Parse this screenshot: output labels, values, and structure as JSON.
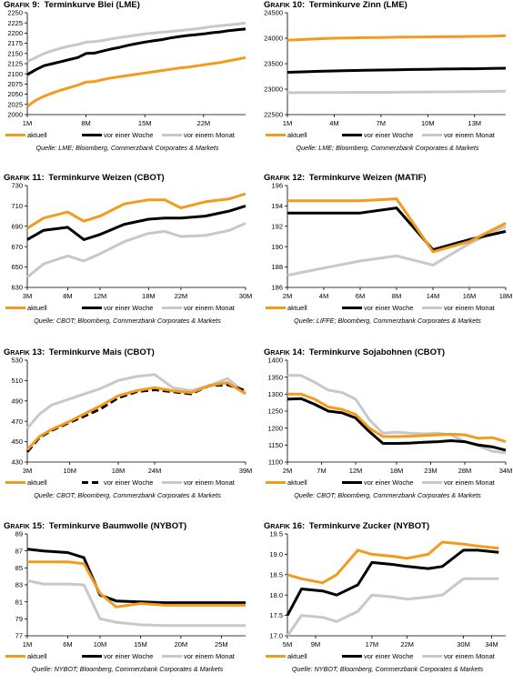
{
  "prefix": "Grafik",
  "legend_colors": {
    "aktuell": "#f39b1c",
    "woche": "#000000",
    "monat": "#c8c8c8"
  },
  "charts": [
    {
      "number": "9:",
      "title_text": "Terminkurve Blei (LME)",
      "source": "Quelle: LME; Bloomberg, Commerzbank Corporates & Markets",
      "legend": [
        "aktuell",
        "vor einer Woche",
        "vor einem Monat"
      ],
      "chart_data": {
        "type": "line",
        "ylim": [
          2000,
          2250
        ],
        "yticks": [
          "2000",
          "2025",
          "2050",
          "2075",
          "2100",
          "2125",
          "2150",
          "2175",
          "2200",
          "2225",
          "2250"
        ],
        "xticks": [
          "1M",
          "8M",
          "15M",
          "22M"
        ],
        "xtick_pos": [
          1,
          8,
          15,
          22
        ],
        "xlim": [
          1,
          27
        ],
        "x": [
          1,
          2,
          3,
          4,
          5,
          6,
          7,
          8,
          9,
          10,
          11,
          12,
          13,
          14,
          15,
          16,
          17,
          18,
          19,
          20,
          21,
          22,
          23,
          24,
          25,
          26,
          27
        ],
        "series": [
          {
            "name": "aktuell",
            "values": [
              2020,
              2035,
              2045,
              2053,
              2060,
              2066,
              2072,
              2080,
              2081,
              2086,
              2090,
              2093,
              2096,
              2099,
              2102,
              2105,
              2108,
              2111,
              2114,
              2116,
              2119,
              2122,
              2125,
              2128,
              2132,
              2136,
              2140
            ]
          },
          {
            "name": "vor einer Woche",
            "values": [
              2098,
              2110,
              2120,
              2125,
              2130,
              2135,
              2140,
              2150,
              2151,
              2156,
              2161,
              2165,
              2170,
              2174,
              2178,
              2181,
              2184,
              2188,
              2191,
              2194,
              2196,
              2198,
              2201,
              2203,
              2206,
              2208,
              2210
            ]
          },
          {
            "name": "vor einem Monat",
            "values": [
              2130,
              2140,
              2150,
              2157,
              2163,
              2168,
              2172,
              2178,
              2179,
              2182,
              2186,
              2189,
              2192,
              2195,
              2198,
              2200,
              2202,
              2204,
              2206,
              2208,
              2210,
              2213,
              2216,
              2218,
              2220,
              2222,
              2225
            ]
          }
        ]
      }
    },
    {
      "number": "10:",
      "title_text": "Terminkurve Zinn (LME)",
      "source": "Quelle: LME; Bloomberg, Commerzbank Corporates & Markets",
      "legend": [
        "aktuell",
        "vor einer Woche",
        "vor einem Monat"
      ],
      "chart_data": {
        "type": "line",
        "ylim": [
          22500,
          24500
        ],
        "yticks": [
          "22500",
          "23000",
          "23500",
          "24000",
          "24500"
        ],
        "xticks": [
          "1M",
          "4M",
          "7M",
          "10M",
          "13M"
        ],
        "xtick_pos": [
          1,
          4,
          7,
          10,
          13
        ],
        "xlim": [
          1,
          15
        ],
        "x": [
          1,
          2,
          3,
          4,
          5,
          6,
          7,
          8,
          9,
          10,
          11,
          12,
          13,
          14,
          15
        ],
        "series": [
          {
            "name": "aktuell",
            "values": [
              23960,
              23975,
              23990,
              24000,
              24005,
              24010,
              24015,
              24020,
              24022,
              24025,
              24028,
              24030,
              24035,
              24040,
              24050
            ]
          },
          {
            "name": "vor einer Woche",
            "values": [
              23330,
              23340,
              23350,
              23358,
              23365,
              23370,
              23375,
              23380,
              23385,
              23390,
              23395,
              23398,
              23400,
              23405,
              23410
            ]
          },
          {
            "name": "vor einem Monat",
            "values": [
              22930,
              22932,
              22934,
              22935,
              22936,
              22937,
              22938,
              22940,
              22942,
              22944,
              22946,
              22948,
              22950,
              22955,
              22960
            ]
          }
        ]
      }
    },
    {
      "number": "11:",
      "title_text": "Terminkurve Weizen (CBOT)",
      "source": "Quelle: CBOT; Bloomberg, Commerzbank Corporates & Markets",
      "legend": [
        "aktuell",
        "vor einer Woche",
        "vor einem Monat"
      ],
      "chart_data": {
        "type": "line",
        "ylim": [
          630,
          730
        ],
        "yticks": [
          "630",
          "650",
          "670",
          "690",
          "710",
          "730"
        ],
        "xticks": [
          "3M",
          "8M",
          "12M",
          "18M",
          "22M",
          "30M"
        ],
        "xtick_pos": [
          3,
          8,
          12,
          18,
          22,
          30
        ],
        "xlim": [
          3,
          30
        ],
        "x": [
          3,
          5,
          8,
          10,
          12,
          15,
          18,
          20,
          22,
          25,
          28,
          30
        ],
        "series": [
          {
            "name": "aktuell",
            "values": [
              688,
              698,
              704,
              695,
              700,
              712,
              716,
              716,
              708,
              714,
              717,
              722
            ]
          },
          {
            "name": "vor einer Woche",
            "values": [
              677,
              686,
              689,
              677,
              682,
              692,
              697,
              698,
              698,
              700,
              705,
              710
            ]
          },
          {
            "name": "vor einem Monat",
            "values": [
              640,
              653,
              661,
              656,
              663,
              675,
              683,
              685,
              680,
              681,
              686,
              693
            ]
          }
        ]
      }
    },
    {
      "number": "12:",
      "title_text": "Terminkurve Weizen (MATIF)",
      "source": "Quelle: LIFFE; Bloomberg, Commerzbank Corporates & Markets",
      "legend": [
        "aktuell",
        "vor einer Woche",
        "vor einem Monat"
      ],
      "chart_data": {
        "type": "line",
        "ylim": [
          186,
          196
        ],
        "yticks": [
          "186",
          "188",
          "190",
          "192",
          "194",
          "196"
        ],
        "xticks": [
          "2M",
          "4M",
          "6M",
          "8M",
          "14M",
          "16M",
          "18M"
        ],
        "xtick_pos": [
          2,
          4,
          6,
          8,
          10,
          12,
          14
        ],
        "xlim": [
          2,
          14
        ],
        "x": [
          2,
          4,
          6,
          8,
          10,
          12,
          14
        ],
        "series": [
          {
            "name": "aktuell",
            "values": [
              194.5,
              194.5,
              194.5,
              194.7,
              189.5,
              190.5,
              192.3
            ]
          },
          {
            "name": "vor einer Woche",
            "values": [
              193.3,
              193.3,
              193.3,
              193.8,
              189.7,
              190.7,
              191.5
            ]
          },
          {
            "name": "vor einem Monat",
            "values": [
              187.2,
              187.9,
              188.6,
              189.1,
              188.2,
              190.3,
              192.0
            ]
          }
        ]
      }
    },
    {
      "number": "13:",
      "title_text": "Terminkurve Mais (CBOT)",
      "source": "Quelle: CBOT; Bloomberg, Commerzbank Corporates & Markets",
      "legend": [
        "aktuell",
        "vor einer Woche",
        "vor einem Monat"
      ],
      "chart_data": {
        "type": "line",
        "ylim": [
          430,
          530
        ],
        "yticks": [
          "430",
          "450",
          "470",
          "490",
          "510",
          "530"
        ],
        "xticks": [
          "3M",
          "10M",
          "18M",
          "24M",
          "39M"
        ],
        "xtick_pos": [
          3,
          10,
          18,
          24,
          39
        ],
        "xlim": [
          3,
          39
        ],
        "x": [
          3,
          5,
          7,
          10,
          12,
          15,
          18,
          21,
          24,
          27,
          30,
          33,
          36,
          39
        ],
        "series": [
          {
            "name": "aktuell",
            "values": [
              442,
              455,
              462,
              470,
              476,
              485,
              495,
              500,
              503,
              500,
              498,
              505,
              508,
              497
            ]
          },
          {
            "name": "vor einer Woche",
            "values": [
              440,
              454,
              461,
              469,
              474,
              482,
              493,
              499,
              501,
              499,
              497,
              505,
              506,
              500
            ]
          },
          {
            "name": "vor einem Monat",
            "values": [
              463,
              477,
              486,
              492,
              496,
              502,
              510,
              514,
              516,
              503,
              500,
              505,
              512,
              498
            ]
          }
        ]
      }
    },
    {
      "number": "14:",
      "title_text": "Terminkurve Sojabohnen (CBOT)",
      "source": "Quelle: CBOT; Bloomberg, Commerzbank Corporates & Markets",
      "legend": [
        "aktuell",
        "vor einer Woche",
        "vor einem Monat"
      ],
      "chart_data": {
        "type": "line",
        "ylim": [
          1100,
          1400
        ],
        "yticks": [
          "1100",
          "1150",
          "1200",
          "1250",
          "1300",
          "1350",
          "1400"
        ],
        "xticks": [
          "2M",
          "7M",
          "12M",
          "18M",
          "23M",
          "28M",
          "34M"
        ],
        "xtick_pos": [
          2,
          7,
          12,
          18,
          23,
          28,
          34
        ],
        "xlim": [
          2,
          34
        ],
        "x": [
          2,
          4,
          6,
          8,
          10,
          12,
          14,
          16,
          18,
          20,
          22,
          24,
          26,
          28,
          30,
          32,
          34
        ],
        "series": [
          {
            "name": "aktuell",
            "values": [
              1300,
              1300,
              1285,
              1262,
              1255,
              1240,
              1200,
              1175,
              1175,
              1176,
              1178,
              1180,
              1182,
              1180,
              1170,
              1172,
              1160
            ]
          },
          {
            "name": "vor einer Woche",
            "values": [
              1285,
              1287,
              1270,
              1250,
              1245,
              1230,
              1190,
              1155,
              1155,
              1156,
              1158,
              1160,
              1163,
              1160,
              1150,
              1145,
              1135
            ]
          },
          {
            "name": "vor einem Monat",
            "values": [
              1355,
              1355,
              1335,
              1312,
              1305,
              1285,
              1225,
              1185,
              1188,
              1185,
              1183,
              1185,
              1180,
              1160,
              1148,
              1132,
              1127
            ]
          }
        ]
      }
    },
    {
      "number": "15:",
      "title_text": "Terminkurve Baumwolle (NYBOT)",
      "source": "Quelle: NYBOT; Bloomberg, Commerzbank Corporates & Markets",
      "legend": [
        "aktuell",
        "vor einer Woche",
        "vor einem Monat"
      ],
      "chart_data": {
        "type": "line",
        "ylim": [
          77,
          89
        ],
        "yticks": [
          "77",
          "79",
          "81",
          "83",
          "85",
          "87",
          "89"
        ],
        "xticks": [
          "1M",
          "6M",
          "10M",
          "15M",
          "20M",
          "25M"
        ],
        "xtick_pos": [
          1,
          6,
          10,
          15,
          20,
          25
        ],
        "xlim": [
          1,
          28
        ],
        "x": [
          1,
          3,
          6,
          8,
          10,
          12,
          15,
          18,
          20,
          25,
          28
        ],
        "series": [
          {
            "name": "aktuell",
            "values": [
              85.7,
              85.7,
              85.7,
              85.5,
              82.0,
              80.4,
              80.8,
              80.6,
              80.6,
              80.6,
              80.6
            ]
          },
          {
            "name": "vor einer Woche",
            "values": [
              87.2,
              87.0,
              86.8,
              86.2,
              81.8,
              81.1,
              81.0,
              80.9,
              80.9,
              80.9,
              80.9
            ]
          },
          {
            "name": "vor einem Monat",
            "values": [
              83.5,
              83.1,
              83.1,
              83.0,
              79.0,
              78.6,
              78.3,
              78.2,
              78.2,
              78.2,
              78.2
            ]
          }
        ]
      }
    },
    {
      "number": "16:",
      "title_text": "Terminkurve Zucker (NYBOT)",
      "source": "Quelle: NYBOT; Bloomberg, Commerzbank Corporates & Markets",
      "legend": [
        "aktuell",
        "vor einer Woche",
        "vor einem Monat"
      ],
      "chart_data": {
        "type": "line",
        "ylim": [
          17,
          19.5
        ],
        "yticks": [
          "17.0",
          "17.5",
          "18.0",
          "18.5",
          "19.0",
          "19.5"
        ],
        "xticks": [
          "5M",
          "9M",
          "17M",
          "22M",
          "30M",
          "34M"
        ],
        "xtick_pos": [
          5,
          9,
          17,
          22,
          30,
          34
        ],
        "xlim": [
          5,
          36
        ],
        "x": [
          5,
          7,
          10,
          12,
          15,
          17,
          20,
          22,
          25,
          27,
          30,
          32,
          35
        ],
        "series": [
          {
            "name": "aktuell",
            "values": [
              18.5,
              18.4,
              18.3,
              18.5,
              19.1,
              19.0,
              18.95,
              18.9,
              19.0,
              19.3,
              19.25,
              19.2,
              19.15
            ]
          },
          {
            "name": "vor einer Woche",
            "values": [
              17.5,
              18.15,
              18.1,
              18.0,
              18.25,
              18.8,
              18.75,
              18.7,
              18.65,
              18.7,
              19.1,
              19.1,
              19.05
            ]
          },
          {
            "name": "vor einem Monat",
            "values": [
              17.0,
              17.5,
              17.45,
              17.35,
              17.6,
              18.0,
              17.95,
              17.9,
              17.95,
              18.0,
              18.4,
              18.4,
              18.4
            ]
          }
        ]
      }
    }
  ]
}
